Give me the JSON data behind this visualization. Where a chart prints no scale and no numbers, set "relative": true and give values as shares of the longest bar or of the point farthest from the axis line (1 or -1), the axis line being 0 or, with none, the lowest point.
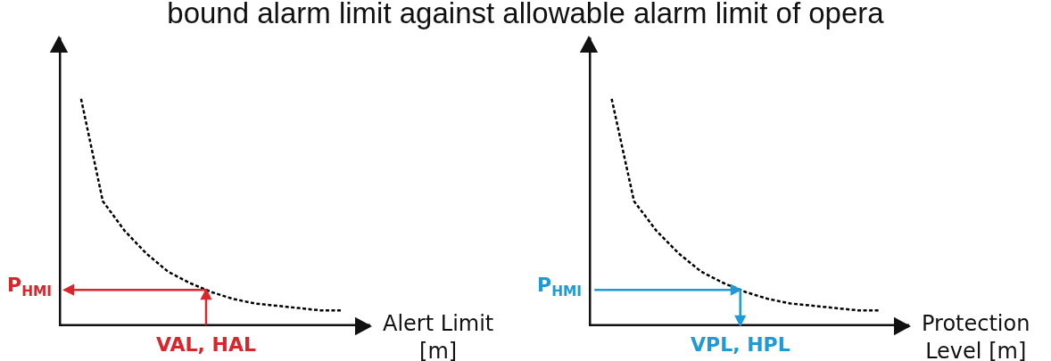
{
  "chart_data": [
    {
      "type": "line",
      "title": "bound alarm limit against allowable alarm limit of opera",
      "xlabel": "Alert Limit\n[m]",
      "relative": true,
      "line_style": "dashed",
      "marker": "none",
      "grid": false,
      "tick_labels": false,
      "categories": [
        null,
        null,
        null,
        null,
        null,
        null,
        null,
        null,
        null,
        null,
        null,
        null,
        null
      ],
      "series": [
        {
          "color": "#000000",
          "values": [
            1.0,
            0.55,
            0.42,
            0.32,
            0.24,
            0.19,
            0.15,
            0.12,
            0.1,
            0.09,
            0.08,
            0.07,
            0.07
          ]
        }
      ],
      "ref_lines": [
        {
          "axis": "y",
          "value": 0.16,
          "label": "P$_{HMI}$",
          "color": "#d9262c"
        }
      ],
      "annotations": [
        "VAL, HAL"
      ]
    },
    {
      "type": "line",
      "xlabel": "Protection\nLevel [m]",
      "relative": true,
      "line_style": "dashed",
      "marker": "none",
      "grid": false,
      "tick_labels": false,
      "categories": [
        null,
        null,
        null,
        null,
        null,
        null,
        null,
        null,
        null,
        null,
        null,
        null,
        null
      ],
      "series": [
        {
          "color": "#000000",
          "values": [
            1.0,
            0.55,
            0.42,
            0.32,
            0.24,
            0.19,
            0.15,
            0.12,
            0.1,
            0.09,
            0.08,
            0.07,
            0.07
          ]
        }
      ],
      "ref_lines": [
        {
          "axis": "y",
          "value": 0.16,
          "label": "P$_{HMI}$",
          "color": "#1e9ad6"
        }
      ],
      "annotations": [
        "VPL, HPL"
      ]
    }
  ]
}
